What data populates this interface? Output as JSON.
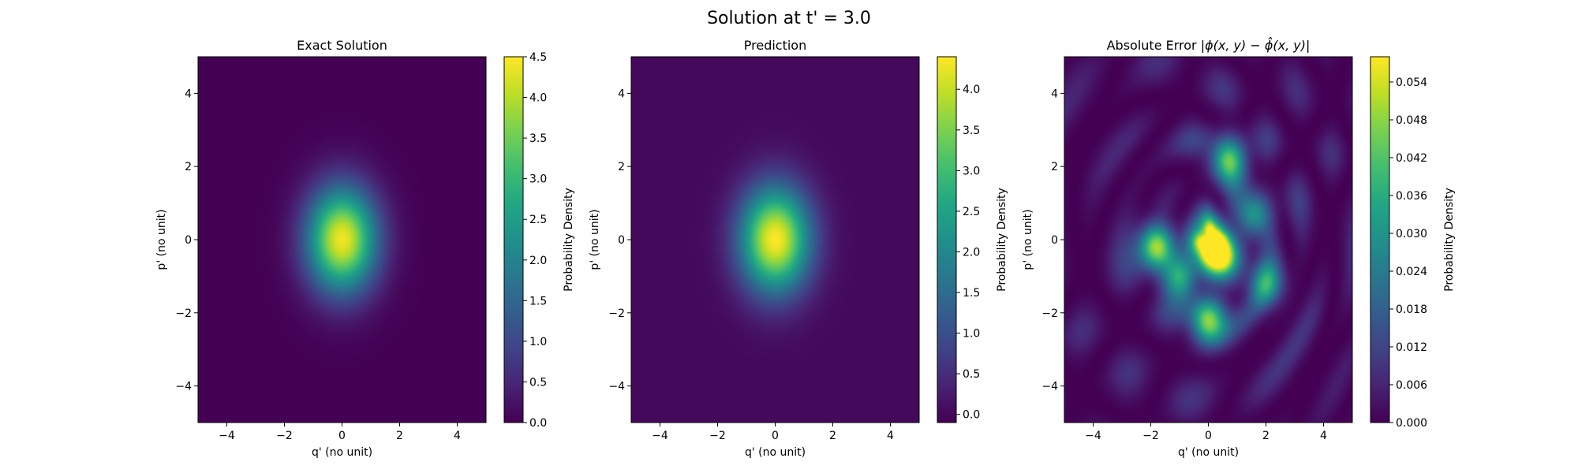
{
  "figure": {
    "title": "Solution at t' = 3.0"
  },
  "chart_data": [
    {
      "type": "heatmap",
      "title": "Exact Solution",
      "xlabel": "q' (no unit)",
      "ylabel": "p' (no unit)",
      "xlim": [
        -5,
        5
      ],
      "ylim": [
        -5,
        5
      ],
      "xticks": [
        -4,
        -2,
        0,
        2,
        4
      ],
      "yticks": [
        -4,
        -2,
        0,
        2,
        4
      ],
      "tick_labels_x": [
        "−4",
        "−2",
        "0",
        "2",
        "4"
      ],
      "tick_labels_y": [
        "−4",
        "−2",
        "0",
        "2",
        "4"
      ],
      "colormap": "viridis",
      "grid": false,
      "field": {
        "kind": "gaussian",
        "center": [
          0,
          0
        ],
        "sigma_x": 0.85,
        "sigma_y": 1.0,
        "peak": 4.4
      },
      "colorbar": {
        "label": "Probability Density",
        "range": [
          0.0,
          4.5
        ],
        "ticks": [
          "0.0",
          "0.5",
          "1.0",
          "1.5",
          "2.0",
          "2.5",
          "3.0",
          "3.5",
          "4.0",
          "4.5"
        ]
      }
    },
    {
      "type": "heatmap",
      "title": "Prediction",
      "xlabel": "q' (no unit)",
      "ylabel": "p' (no unit)",
      "xlim": [
        -5,
        5
      ],
      "ylim": [
        -5,
        5
      ],
      "xticks": [
        -4,
        -2,
        0,
        2,
        4
      ],
      "yticks": [
        -4,
        -2,
        0,
        2,
        4
      ],
      "tick_labels_x": [
        "−4",
        "−2",
        "0",
        "2",
        "4"
      ],
      "tick_labels_y": [
        "−4",
        "−2",
        "0",
        "2",
        "4"
      ],
      "colormap": "viridis",
      "grid": false,
      "field": {
        "kind": "gaussian",
        "center": [
          0,
          0
        ],
        "sigma_x": 0.85,
        "sigma_y": 1.0,
        "peak": 4.4
      },
      "colorbar": {
        "label": "Probability Density",
        "range": [
          -0.1,
          4.4
        ],
        "ticks": [
          "0.0",
          "0.5",
          "1.0",
          "1.5",
          "2.0",
          "2.5",
          "3.0",
          "3.5",
          "4.0"
        ],
        "tick_values": [
          0.0,
          0.5,
          1.0,
          1.5,
          2.0,
          2.5,
          3.0,
          3.5,
          4.0
        ]
      }
    },
    {
      "type": "heatmap",
      "title_prefix": "Absolute Error ",
      "title_math": "|ϕ(x, y) − ϕ̂(x, y)|",
      "xlabel": "q' (no unit)",
      "ylabel": "p' (no unit)",
      "xlim": [
        -5,
        5
      ],
      "ylim": [
        -5,
        5
      ],
      "xticks": [
        -4,
        -2,
        0,
        2,
        4
      ],
      "yticks": [
        -4,
        -2,
        0,
        2,
        4
      ],
      "tick_labels_x": [
        "−4",
        "−2",
        "0",
        "2",
        "4"
      ],
      "tick_labels_y": [
        "−4",
        "−2",
        "0",
        "2",
        "4"
      ],
      "colormap": "viridis",
      "grid": false,
      "field": {
        "kind": "interference",
        "hotspots": [
          {
            "x": -1.8,
            "y": -0.2,
            "value": 0.05
          },
          {
            "x": 0.0,
            "y": 0.0,
            "value": 0.052
          },
          {
            "x": 0.5,
            "y": -0.5,
            "value": 0.056
          },
          {
            "x": 0.0,
            "y": -2.2,
            "value": 0.048
          },
          {
            "x": 0.7,
            "y": 2.2,
            "value": 0.042
          },
          {
            "x": -1.0,
            "y": -1.0,
            "value": 0.035
          },
          {
            "x": 1.6,
            "y": 0.7,
            "value": 0.03
          },
          {
            "x": 2.0,
            "y": -1.2,
            "value": 0.028
          }
        ]
      },
      "colorbar": {
        "label": "Probability Density",
        "range": [
          0.0,
          0.058
        ],
        "ticks": [
          "0.000",
          "0.006",
          "0.012",
          "0.018",
          "0.024",
          "0.030",
          "0.036",
          "0.042",
          "0.048",
          "0.054"
        ],
        "tick_values": [
          0.0,
          0.006,
          0.012,
          0.018,
          0.024,
          0.03,
          0.036,
          0.042,
          0.048,
          0.054
        ]
      }
    }
  ]
}
